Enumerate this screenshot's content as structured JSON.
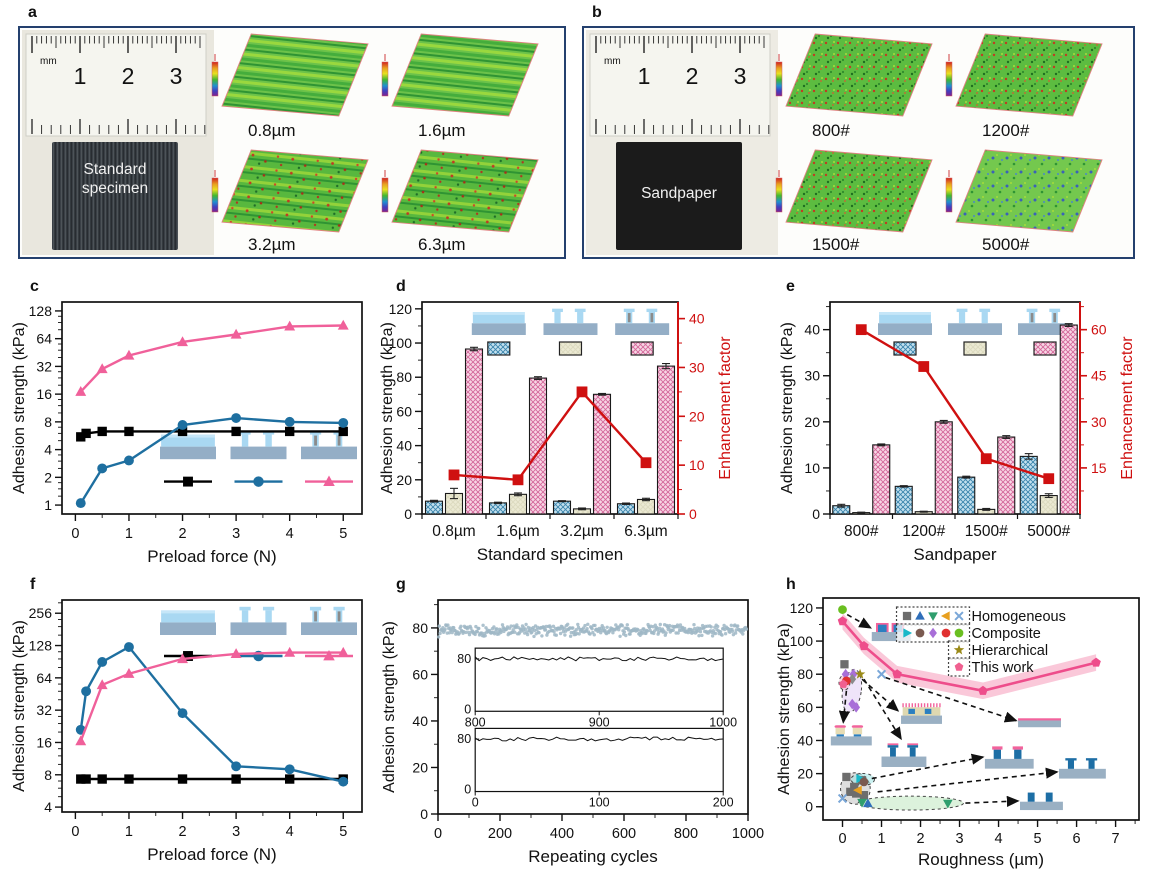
{
  "panels": {
    "a": "a",
    "b": "b",
    "c": "c",
    "d": "d",
    "e": "e",
    "f": "f",
    "g": "g",
    "h": "h"
  },
  "panel_a": {
    "region_bg": "#e9e7de",
    "ruler_unit": "mm",
    "ruler_numbers": [
      "1",
      "2",
      "3"
    ],
    "specimen_label": [
      "Standard",
      "specimen"
    ],
    "specimen_color": "#3a4046",
    "topo_labels": [
      "0.8µm",
      "1.6µm",
      "3.2µm",
      "6.3µm"
    ],
    "topo_style": "striped"
  },
  "panel_b": {
    "region_bg": "#edebe3",
    "ruler_unit": "mm",
    "ruler_numbers": [
      "1",
      "2",
      "3"
    ],
    "specimen_label": [
      "Sandpaper"
    ],
    "specimen_color": "#1b1b1b",
    "topo_labels": [
      "800#",
      "1200#",
      "1500#",
      "5000#"
    ],
    "topo_style": "speckled"
  },
  "chart_data": {
    "c": {
      "type": "line",
      "xlabel": "Preload force (N)",
      "ylabel": "Adhesion strength (kPa)",
      "x_ticks": [
        0,
        1,
        2,
        3,
        4,
        5
      ],
      "y_ticks": [
        1,
        2,
        4,
        8,
        16,
        32,
        64,
        128
      ],
      "xlim": [
        -0.25,
        5.35
      ],
      "ylim": [
        0.8,
        160
      ],
      "y_scale": "log",
      "inset": "bottom",
      "series": [
        {
          "name": "flat-film",
          "marker": "square",
          "color": "#000000",
          "x": [
            0.1,
            0.2,
            0.5,
            1,
            2,
            3,
            4,
            5
          ],
          "y": [
            5.5,
            6.0,
            6.3,
            6.3,
            6.3,
            6.3,
            6.3,
            6.3
          ]
        },
        {
          "name": "mushroom-pillar",
          "marker": "circle",
          "color": "#1e6fa0",
          "x": [
            0.1,
            0.5,
            1,
            2,
            3,
            4,
            5
          ],
          "y": [
            1.05,
            2.5,
            3.05,
            7.4,
            8.8,
            8.0,
            7.8
          ]
        },
        {
          "name": "stiff-core-pillar",
          "marker": "triangle-up",
          "color": "#f0609a",
          "x": [
            0.1,
            0.5,
            1,
            2,
            3,
            4,
            5
          ],
          "y": [
            17,
            30,
            42,
            59,
            71,
            87,
            89
          ]
        }
      ]
    },
    "d": {
      "type": "bar-line",
      "categories": [
        "0.8µm",
        "1.6µm",
        "3.2µm",
        "6.3µm"
      ],
      "xlabel": "Standard specimen",
      "ylabel_left": "Adhesion strength (kPa)",
      "ylabel_right": "Enhancement factor",
      "left_ticks": [
        0,
        20,
        40,
        60,
        80,
        100,
        120
      ],
      "left_max": 124,
      "right_ticks": [
        0,
        10,
        20,
        30,
        40
      ],
      "right_max": 43.4,
      "line_color": "#cf1010",
      "series": [
        {
          "name": "flat-film",
          "pattern": "bluehatch",
          "values": [
            7.5,
            6.5,
            7.5,
            6.0
          ],
          "errors": [
            0.5,
            0.4,
            0.3,
            0.4
          ]
        },
        {
          "name": "mushroom-pillar",
          "pattern": "beige",
          "values": [
            12,
            11.5,
            3,
            8.5
          ],
          "errors": [
            3,
            0.8,
            0.5,
            0.7
          ]
        },
        {
          "name": "stiff-core-pillar",
          "pattern": "pinkhatch",
          "values": [
            96.5,
            79.5,
            70,
            86.5
          ],
          "errors": [
            1,
            0.8,
            0.5,
            1.5
          ]
        }
      ],
      "enhancement": [
        8,
        7,
        25,
        10.5
      ]
    },
    "e": {
      "type": "bar-line",
      "categories": [
        "800#",
        "1200#",
        "1500#",
        "5000#"
      ],
      "xlabel": "Sandpaper",
      "ylabel_left": "Adhesion strength (kPa)",
      "ylabel_right": "Enhancement factor",
      "left_ticks": [
        0,
        10,
        20,
        30,
        40
      ],
      "left_max": 46,
      "right_ticks": [
        15,
        30,
        45,
        60
      ],
      "right_max": 69,
      "line_color": "#cf1010",
      "series": [
        {
          "name": "flat-film",
          "pattern": "bluehatch",
          "values": [
            1.8,
            6,
            8,
            12.5
          ],
          "errors": [
            0.3,
            0.15,
            0.2,
            0.6
          ]
        },
        {
          "name": "mushroom-pillar",
          "pattern": "beige",
          "values": [
            0.3,
            0.5,
            1,
            4
          ],
          "errors": [
            0.1,
            0.1,
            0.2,
            0.4
          ]
        },
        {
          "name": "stiff-core-pillar",
          "pattern": "pinkhatch",
          "values": [
            15,
            20,
            16.7,
            41
          ],
          "errors": [
            0.2,
            0.3,
            0.3,
            0.3
          ]
        }
      ],
      "enhancement": [
        60,
        48,
        18,
        11.5
      ]
    },
    "f": {
      "type": "line",
      "xlabel": "Preload force (N)",
      "ylabel": "Adhesion strength (kPa)",
      "x_ticks": [
        0,
        1,
        2,
        3,
        4,
        5
      ],
      "y_ticks": [
        4,
        8,
        16,
        32,
        64,
        128,
        256
      ],
      "xlim": [
        -0.25,
        5.35
      ],
      "ylim": [
        3.6,
        340
      ],
      "y_scale": "log",
      "inset": "top",
      "series": [
        {
          "name": "flat-film",
          "marker": "square",
          "color": "#000000",
          "x": [
            0.1,
            0.2,
            0.5,
            1,
            2,
            3,
            4,
            5
          ],
          "y": [
            7.3,
            7.3,
            7.3,
            7.3,
            7.3,
            7.3,
            7.3,
            7.3
          ]
        },
        {
          "name": "mushroom-pillar",
          "marker": "circle",
          "color": "#1e6fa0",
          "x": [
            0.1,
            0.2,
            0.5,
            1,
            2,
            3,
            4,
            5
          ],
          "y": [
            21,
            48,
            90,
            124,
            30,
            9.6,
            9,
            6.9
          ]
        },
        {
          "name": "stiff-core-pillar",
          "marker": "triangle-up",
          "color": "#f0609a",
          "x": [
            0.1,
            0.5,
            1,
            2,
            3,
            4,
            5
          ],
          "y": [
            16.5,
            55,
            70,
            96,
            107,
            110,
            110
          ]
        }
      ]
    },
    "g": {
      "type": "scatter",
      "xlabel": "Repeating cycles",
      "ylabel": "Adhesion strength (kPa)",
      "x_ticks": [
        0,
        200,
        400,
        600,
        800,
        1000
      ],
      "y_ticks": [
        0,
        20,
        40,
        60,
        80
      ],
      "xlim": [
        0,
        1000
      ],
      "ylim": [
        0,
        92
      ],
      "scatter": {
        "color": "#9fb7c6",
        "mean": 79,
        "spread": 2.2,
        "count": 430
      },
      "insets": [
        {
          "x_ticks": [
            "800",
            "900",
            "1000"
          ],
          "y_ticks": [
            "0",
            "80"
          ]
        },
        {
          "x_ticks": [
            "0",
            "100",
            "200"
          ],
          "y_ticks": [
            "0",
            "80"
          ]
        }
      ]
    },
    "h": {
      "type": "line-scatter",
      "xlabel": "Roughness (µm)",
      "ylabel": "Adhesion strength (kPa)",
      "x_ticks": [
        0,
        1,
        2,
        3,
        4,
        5,
        6,
        7
      ],
      "y_ticks": [
        0,
        20,
        40,
        60,
        80,
        100,
        120
      ],
      "xlim": [
        -0.5,
        7.6
      ],
      "ylim": [
        -8,
        126
      ],
      "line": {
        "color": "#ee4d8b",
        "band_color": "#f8b5cc",
        "marker": "pentagon",
        "band": 5,
        "x": [
          0,
          0.55,
          1.4,
          3.6,
          6.5
        ],
        "y": [
          112,
          97,
          80,
          70,
          87
        ]
      },
      "legend": [
        {
          "label": "Homogeneous",
          "markers": [
            [
              "square",
              "#6d6d6d"
            ],
            [
              "triangle-up",
              "#2f6fba"
            ],
            [
              "triangle-down",
              "#2f9e6e"
            ],
            [
              "triangle-left",
              "#e8a020"
            ],
            [
              "x",
              "#7aa7d8"
            ]
          ]
        },
        {
          "label": "Composite",
          "markers": [
            [
              "triangle-right",
              "#18b8c8"
            ],
            [
              "circle",
              "#7a5a50"
            ],
            [
              "diamond",
              "#a86fd8"
            ],
            [
              "circle",
              "#e03030"
            ],
            [
              "circle",
              "#6abf20"
            ]
          ]
        },
        {
          "label": "Hierarchical",
          "markers": [
            [
              "star",
              "#9a8a18"
            ]
          ]
        },
        {
          "label": "This work",
          "markers": [
            [
              "pentagon",
              "#f06090"
            ]
          ]
        }
      ],
      "points": [
        [
          "circle",
          "#6abf20",
          0,
          119
        ],
        [
          "square",
          "#6d6d6d",
          0.05,
          86
        ],
        [
          "diamond",
          "#a86fd8",
          0.08,
          80
        ],
        [
          "diamond",
          "#a86fd8",
          0.28,
          80
        ],
        [
          "diamond",
          "#8a8a8a",
          0.25,
          77
        ],
        [
          "circle",
          "#e03030",
          0.1,
          76
        ],
        [
          "pentagon",
          "#f06090",
          0.02,
          74
        ],
        [
          "star",
          "#9a8a18",
          0.45,
          80
        ],
        [
          "x",
          "#7aa7d8",
          1.0,
          80
        ],
        [
          "diamond",
          "#a86fd8",
          0.25,
          62
        ],
        [
          "diamond",
          "#a86fd8",
          0.35,
          60
        ],
        [
          "square",
          "#6d6d6d",
          0.1,
          18
        ],
        [
          "square",
          "#6d6d6d",
          0.5,
          16
        ],
        [
          "square",
          "#6d6d6d",
          0.3,
          12
        ],
        [
          "square",
          "#6d6d6d",
          0.2,
          9
        ],
        [
          "square",
          "#6d6d6d",
          0.35,
          8
        ],
        [
          "square",
          "#6d6d6d",
          0.55,
          7
        ],
        [
          "triangle-right",
          "#18b8c8",
          0.45,
          17
        ],
        [
          "circle",
          "#7a5a50",
          0.55,
          15
        ],
        [
          "triangle-left",
          "#e8a020",
          0.4,
          10
        ],
        [
          "x",
          "#7aa7d8",
          0,
          5
        ],
        [
          "triangle-down",
          "#2f9e6e",
          0.5,
          2.5
        ],
        [
          "triangle-up",
          "#2f6fba",
          0.65,
          2
        ],
        [
          "triangle-down",
          "#2f9e6e",
          2.7,
          2
        ]
      ],
      "ellipses": [
        {
          "cx": 0.24,
          "cy": 70,
          "rx": 0.24,
          "ry": 13,
          "fill": "rgba(196,157,232,0.28)",
          "rot": 8
        },
        {
          "cx": 0.05,
          "cy": 75,
          "rx": 0.14,
          "ry": 4.5,
          "fill": "rgba(248,175,201,0.5)",
          "rot": 0
        },
        {
          "cx": 0.33,
          "cy": 11,
          "rx": 0.38,
          "ry": 9.5,
          "fill": "rgba(160,160,160,0.35)",
          "rot": -10
        },
        {
          "cx": 0.52,
          "cy": 16.5,
          "rx": 0.3,
          "ry": 3.6,
          "fill": "rgba(140,225,225,0.45)",
          "rot": 0
        },
        {
          "cx": 1.75,
          "cy": 2.2,
          "rx": 1.35,
          "ry": 4.2,
          "fill": "rgba(178,226,178,0.45)",
          "rot": 0
        }
      ],
      "structures": [
        {
          "type": "pins-pink",
          "x": 0.75,
          "y": 100,
          "w": 1.0,
          "h": 13
        },
        {
          "type": "mushroom-cream-pink",
          "x": -0.3,
          "y": 37,
          "w": 1.05,
          "h": 13
        },
        {
          "type": "comb",
          "x": 1.5,
          "y": 50,
          "w": 1.05,
          "h": 12
        },
        {
          "type": "tpillar-pink",
          "x": 1.0,
          "y": 24,
          "w": 1.15,
          "h": 15
        },
        {
          "type": "flat-pink",
          "x": 4.5,
          "y": 48,
          "w": 1.1,
          "h": 6
        },
        {
          "type": "pillar-pink",
          "x": 3.65,
          "y": 23,
          "w": 1.25,
          "h": 14
        },
        {
          "type": "mushroom-blue",
          "x": 5.55,
          "y": 17,
          "w": 1.2,
          "h": 14
        },
        {
          "type": "pillar-blue",
          "x": 4.55,
          "y": -2,
          "w": 1.1,
          "h": 12
        }
      ],
      "arrows": [
        [
          0.12,
          116,
          0.72,
          108
        ],
        [
          0.1,
          70,
          0.02,
          51
        ],
        [
          0.5,
          77,
          1.42,
          58
        ],
        [
          0.55,
          77,
          1.5,
          41
        ],
        [
          1.1,
          78,
          4.45,
          52
        ],
        [
          0.75,
          17,
          3.6,
          30
        ],
        [
          0.9,
          9,
          5.5,
          21
        ],
        [
          3.15,
          2.2,
          4.5,
          3.5
        ]
      ]
    }
  }
}
